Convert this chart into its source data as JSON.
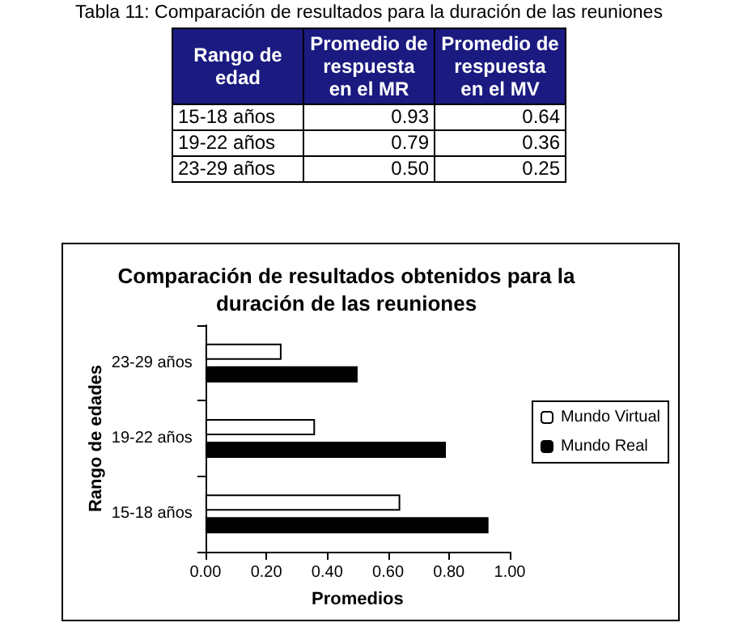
{
  "chart_data": [
    {
      "type": "other",
      "title": "Tabla 11: Comparación de resultados para la duración de las reuniones",
      "annotations": [
        "Rango de edad",
        "Promedio de respuesta en el MR",
        "Promedio de respuesta en el MV",
        "15-18 años",
        "0.93",
        "0.64",
        "19-22 años",
        "0.79",
        "0.36",
        "23-29 años",
        "0.50",
        "0.25"
      ]
    },
    {
      "type": "bar",
      "orientation": "horizontal",
      "title": "Comparación de resultados obtenidos para la\nduración de las reuniones",
      "xlabel": "Promedios",
      "ylabel": "Rango de edades",
      "categories": [
        "23-29 años",
        "19-22 años",
        "15-18 años"
      ],
      "series": [
        {
          "name": "Mundo Virtual",
          "color": "#ffffff",
          "values": [
            0.25,
            0.36,
            0.64
          ]
        },
        {
          "name": "Mundo Real",
          "color": "#000000",
          "values": [
            0.5,
            0.79,
            0.93
          ]
        }
      ],
      "xlim": [
        0,
        1
      ],
      "xticks": [
        {
          "value": 0,
          "label": "0.00"
        },
        {
          "value": 0.2,
          "label": "0.20"
        },
        {
          "value": 0.4,
          "label": "0.40"
        },
        {
          "value": 0.6,
          "label": "0.60"
        },
        {
          "value": 0.8,
          "label": "0.80"
        },
        {
          "value": 1,
          "label": "1.00"
        }
      ],
      "grid": false,
      "legend": "right"
    }
  ]
}
